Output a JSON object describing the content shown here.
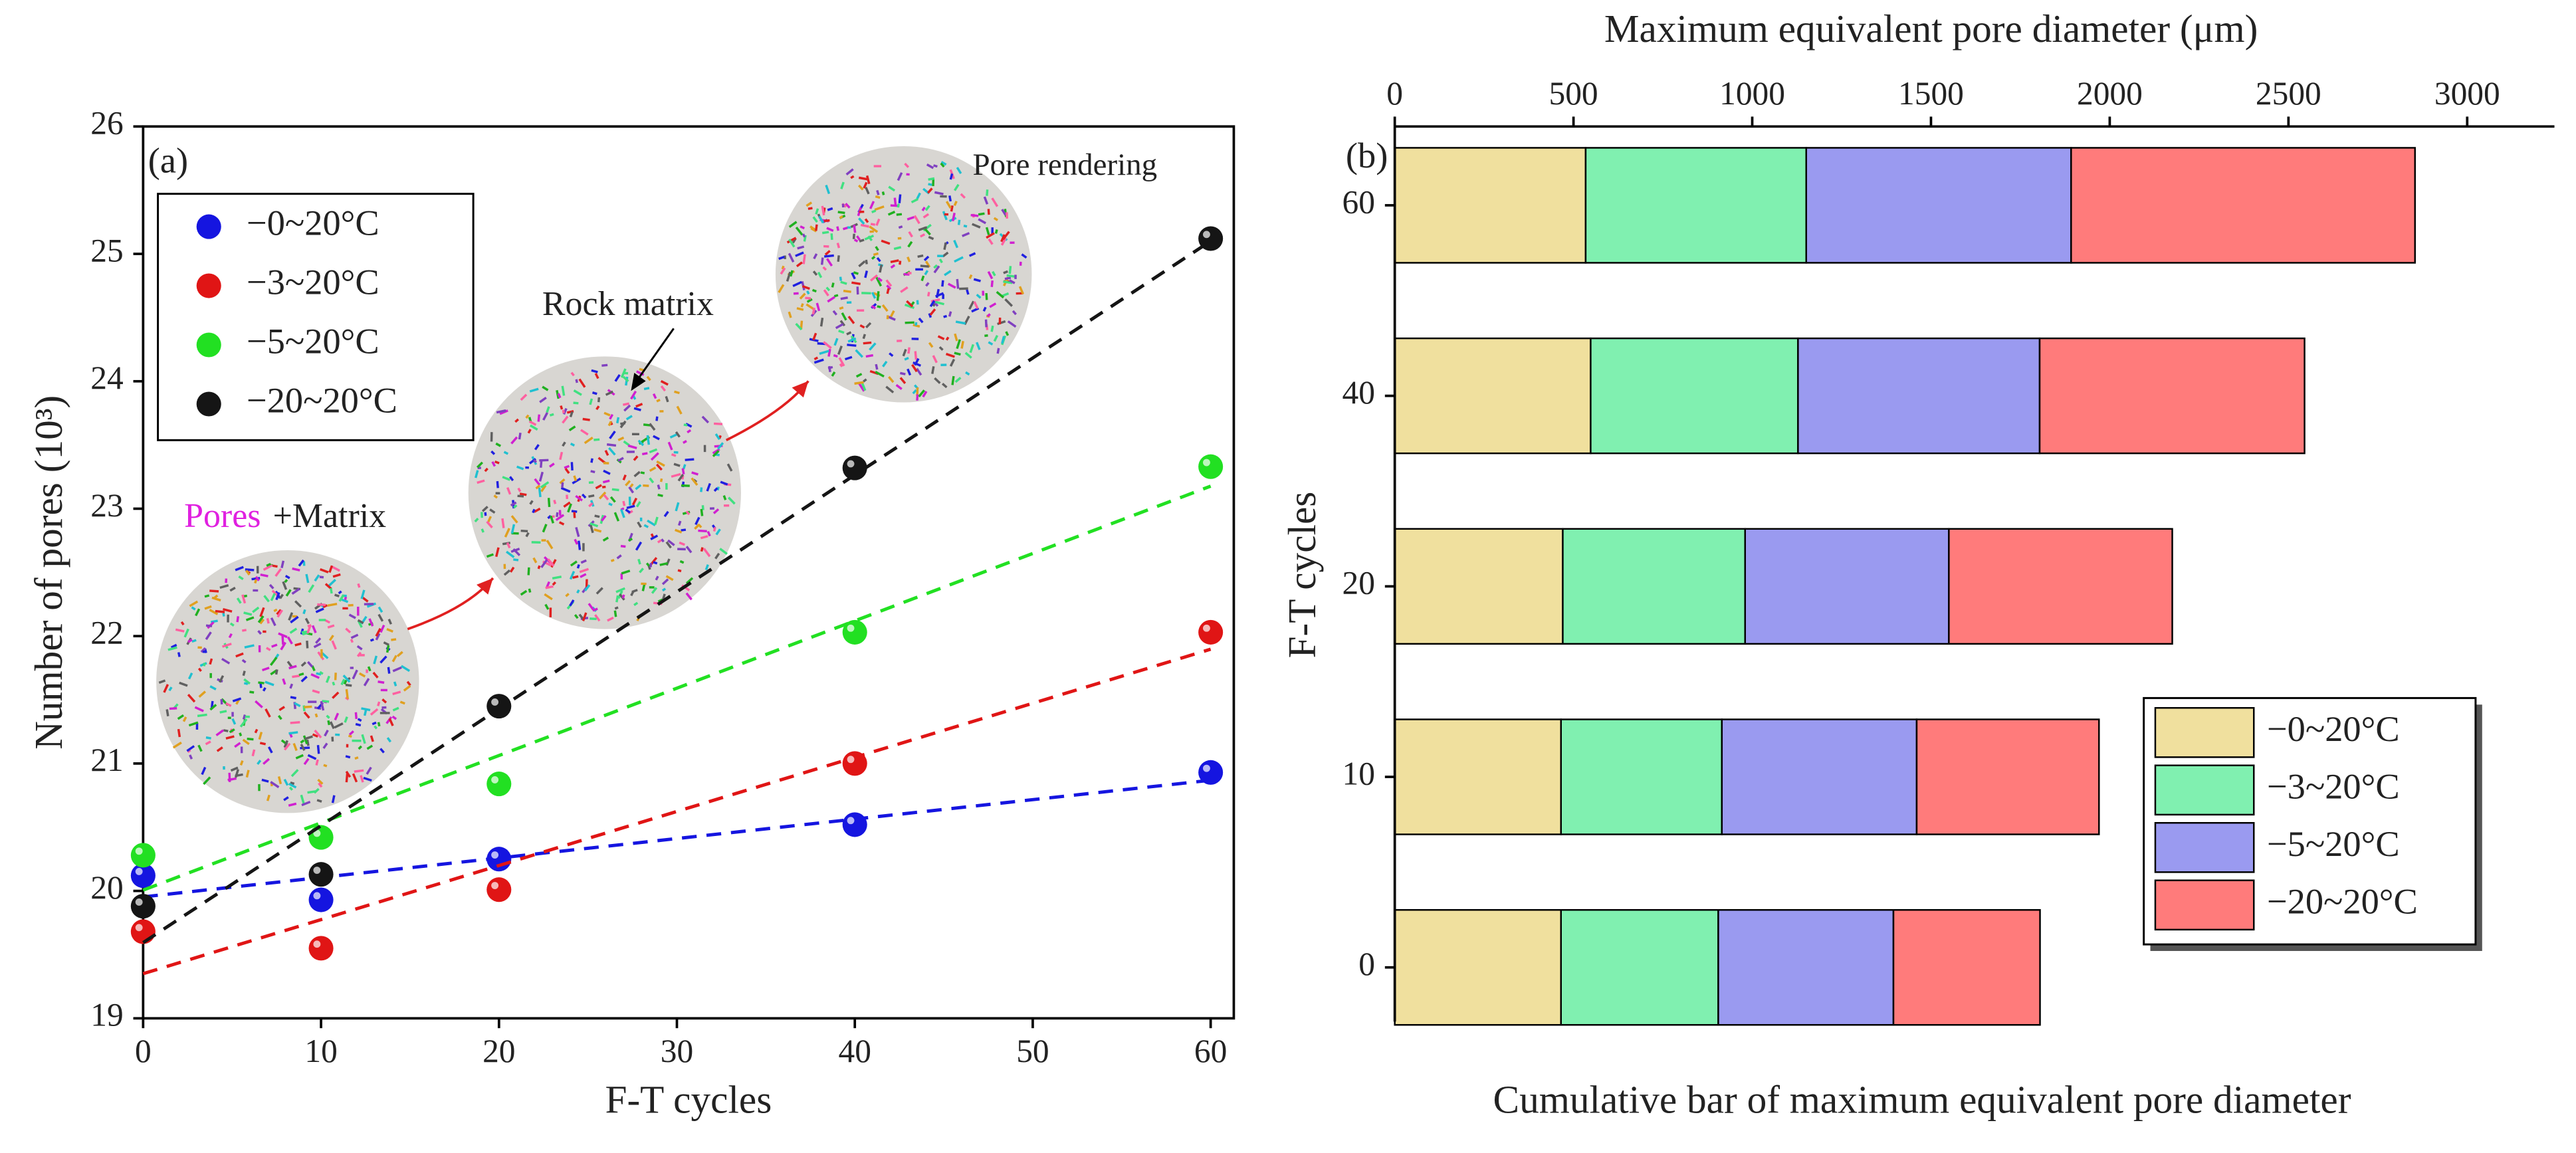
{
  "chart_data": [
    {
      "type": "scatter",
      "xlabel": "F-T cycles",
      "ylabel": "Number of pores (10³)",
      "xlim": [
        0,
        61.3
      ],
      "ylim": [
        19,
        26
      ],
      "xticks": [
        0,
        10,
        20,
        30,
        40,
        50,
        60
      ],
      "yticks": [
        19,
        20,
        21,
        22,
        23,
        24,
        25,
        26
      ],
      "trendline": "linear",
      "legend": "upper left",
      "annotations": [
        "(a)",
        "Pore rendering",
        "Rock matrix",
        "Pores",
        "+Matrix"
      ],
      "series": [
        {
          "name": "−0~20°C",
          "color": "#1515e0",
          "x": [
            0,
            10,
            20,
            40,
            60
          ],
          "values": [
            20.12,
            19.93,
            20.25,
            20.52,
            20.93
          ]
        },
        {
          "name": "−3~20°C",
          "color": "#e01515",
          "x": [
            0,
            10,
            20,
            40,
            60
          ],
          "values": [
            19.68,
            19.55,
            20.01,
            21.0,
            22.03
          ]
        },
        {
          "name": "−5~20°C",
          "color": "#22e022",
          "x": [
            0,
            10,
            20,
            40,
            60
          ],
          "values": [
            20.28,
            20.42,
            20.84,
            22.03,
            23.33
          ]
        },
        {
          "name": "−20~20°C",
          "color": "#151515",
          "x": [
            0,
            10,
            20,
            40,
            60
          ],
          "values": [
            19.88,
            20.13,
            21.45,
            23.32,
            25.12
          ]
        }
      ]
    },
    {
      "type": "stacked-barh",
      "title": "Maximum equivalent pore diameter (μm)",
      "ylabel": "F-T cycles",
      "caption": "Cumulative bar of maximum equivalent pore diameter",
      "annotation": "(b)",
      "xlim": [
        0,
        3244
      ],
      "xticks": [
        0,
        500,
        1000,
        1500,
        2000,
        2500,
        3000
      ],
      "categories": [
        0,
        10,
        20,
        40,
        60
      ],
      "legend": "lower right",
      "series": [
        {
          "name": "−0~20°C",
          "color": "#f0e09e",
          "values": [
            465,
            465,
            470,
            548,
            534
          ]
        },
        {
          "name": "−3~20°C",
          "color": "#80f0b0",
          "values": [
            440,
            450,
            510,
            580,
            617
          ]
        },
        {
          "name": "−5~20°C",
          "color": "#9a9af0",
          "values": [
            490,
            545,
            570,
            676,
            741
          ]
        },
        {
          "name": "−20~20°C",
          "color": "#ff7b7b",
          "values": [
            410,
            510,
            625,
            741,
            962
          ]
        }
      ]
    }
  ]
}
